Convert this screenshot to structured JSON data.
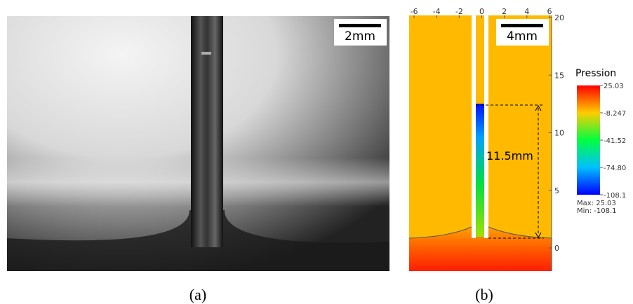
{
  "panel_a": {
    "scale_bar": "2mm",
    "caption": "(a)"
  },
  "panel_b": {
    "scale_bar": "4mm",
    "annotation": "11.5mm",
    "x_ticks": [
      "-6",
      "-4",
      "-2",
      "0",
      "2",
      "4",
      "6"
    ],
    "y_ticks": [
      "20",
      "15",
      "10",
      "5",
      "0"
    ],
    "colorbar": {
      "title": "Pression",
      "labels": [
        "25.03",
        "-8.247",
        "-41.52",
        "-74.80",
        "-108.1"
      ],
      "max": "Max: 25.03",
      "min": "Min: -108.1"
    },
    "caption": "(b)"
  }
}
